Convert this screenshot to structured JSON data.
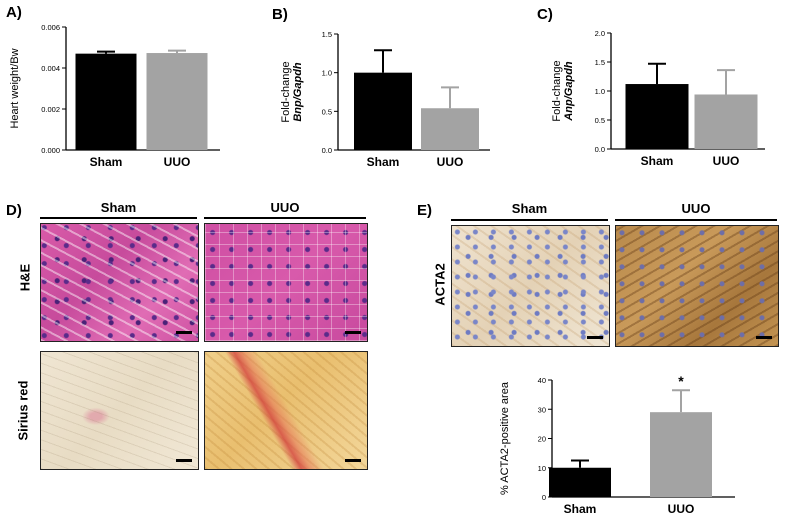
{
  "figure": {
    "panel_labels": [
      "A)",
      "B)",
      "C)",
      "D)",
      "E)"
    ],
    "groups": [
      "Sham",
      "UUO"
    ],
    "histology": {
      "row_labels": [
        "H&E",
        "Sirius red"
      ],
      "acta2_label": "ACTA2"
    }
  },
  "chart_data": [
    {
      "type": "bar",
      "panel": "A)",
      "categories": [
        "Sham",
        "UUO"
      ],
      "values": [
        0.0047,
        0.00473
      ],
      "errors": [
        0.0001,
        0.00012
      ],
      "ylabel_lines": [
        "Heart weight/Bw"
      ],
      "ylim": [
        0,
        0.006
      ],
      "yticks": [
        "0.000",
        "0.002",
        "0.004",
        "0.006"
      ],
      "colors": [
        "#000000",
        "#a3a3a3"
      ]
    },
    {
      "type": "bar",
      "panel": "B)",
      "categories": [
        "Sham",
        "UUO"
      ],
      "values": [
        1.0,
        0.54
      ],
      "errors": [
        0.29,
        0.27
      ],
      "ylabel_lines": [
        "Fold-change",
        "Bnp/Gapdh"
      ],
      "ylim": [
        0,
        1.5
      ],
      "yticks": [
        "0.0",
        "0.5",
        "1.0",
        "1.5"
      ],
      "colors": [
        "#000000",
        "#a3a3a3"
      ]
    },
    {
      "type": "bar",
      "panel": "C)",
      "categories": [
        "Sham",
        "UUO"
      ],
      "values": [
        1.12,
        0.94
      ],
      "errors": [
        0.35,
        0.42
      ],
      "ylabel_lines": [
        "Fold-change",
        "Anp/Gapdh"
      ],
      "ylim": [
        0,
        2.0
      ],
      "yticks": [
        "0.0",
        "0.5",
        "1.0",
        "1.5",
        "2.0"
      ],
      "colors": [
        "#000000",
        "#a3a3a3"
      ]
    },
    {
      "type": "bar",
      "panel": "E)",
      "categories": [
        "Sham",
        "UUO"
      ],
      "values": [
        10,
        29
      ],
      "errors": [
        2.5,
        7.5
      ],
      "ylabel_lines": [
        "% ACTA2-positive area"
      ],
      "ylim": [
        0,
        40
      ],
      "yticks": [
        "0",
        "10",
        "20",
        "30",
        "40"
      ],
      "annotation": "*",
      "colors": [
        "#000000",
        "#a3a3a3"
      ]
    }
  ]
}
